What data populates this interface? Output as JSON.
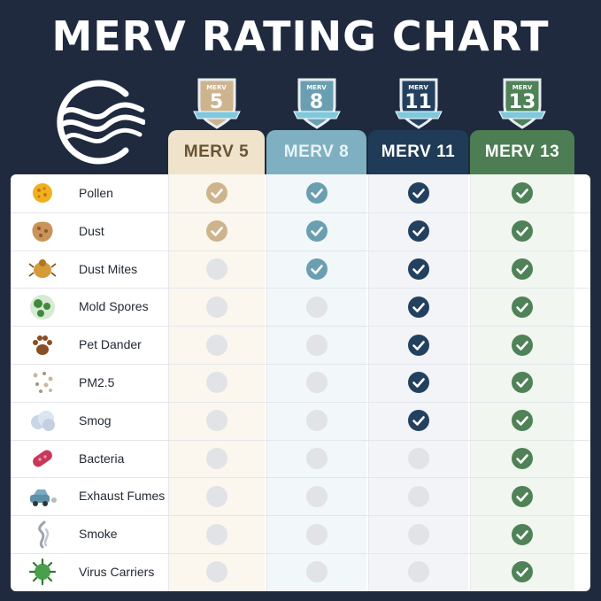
{
  "header": {
    "title": "MERV RATING CHART"
  },
  "colors": {
    "background": "#1f2a3f",
    "merv5": "#cdb48d",
    "merv8": "#6a9fb1",
    "merv11": "#23415e",
    "merv13": "#4f8257",
    "off": "#e1e3e6"
  },
  "chart_data": {
    "type": "table",
    "title": "MERV RATING CHART",
    "columns": [
      {
        "badge_label": "MERV",
        "badge_number": "5",
        "header": "MERV 5",
        "color": "#cdb48d",
        "header_bg": "#efe3cc",
        "header_text": "#6a5330",
        "tint": "#fbf7ef"
      },
      {
        "badge_label": "MERV",
        "badge_number": "8",
        "header": "MERV 8",
        "color": "#6a9fb1",
        "header_bg": "#7fb0c1",
        "header_text": "#eaf3f6",
        "tint": "#f2f7f9"
      },
      {
        "badge_label": "MERV",
        "badge_number": "11",
        "header": "MERV 11",
        "color": "#23415e",
        "header_bg": "#203b58",
        "header_text": "#ffffff",
        "tint": "#f2f4f8"
      },
      {
        "badge_label": "MERV",
        "badge_number": "13",
        "header": "MERV 13",
        "color": "#4f8257",
        "header_bg": "#4d7d52",
        "header_text": "#ffffff",
        "tint": "#f1f6f1"
      }
    ],
    "rows": [
      {
        "label": "Pollen",
        "icon": "pollen-icon",
        "values": [
          true,
          true,
          true,
          true
        ]
      },
      {
        "label": "Dust",
        "icon": "dust-icon",
        "values": [
          true,
          true,
          true,
          true
        ]
      },
      {
        "label": "Dust Mites",
        "icon": "dust-mite-icon",
        "values": [
          false,
          true,
          true,
          true
        ]
      },
      {
        "label": "Mold Spores",
        "icon": "mold-spores-icon",
        "values": [
          false,
          false,
          true,
          true
        ]
      },
      {
        "label": "Pet Dander",
        "icon": "paw-print-icon",
        "values": [
          false,
          false,
          true,
          true
        ]
      },
      {
        "label": "PM2.5",
        "icon": "particles-icon",
        "values": [
          false,
          false,
          true,
          true
        ]
      },
      {
        "label": "Smog",
        "icon": "smog-cloud-icon",
        "values": [
          false,
          false,
          true,
          true
        ]
      },
      {
        "label": "Bacteria",
        "icon": "bacteria-icon",
        "values": [
          false,
          false,
          false,
          true
        ]
      },
      {
        "label": "Exhaust Fumes",
        "icon": "car-exhaust-icon",
        "values": [
          false,
          false,
          false,
          true
        ]
      },
      {
        "label": "Smoke",
        "icon": "smoke-icon",
        "values": [
          false,
          false,
          false,
          true
        ]
      },
      {
        "label": "Virus Carriers",
        "icon": "virus-icon",
        "values": [
          false,
          false,
          false,
          true
        ]
      }
    ]
  }
}
